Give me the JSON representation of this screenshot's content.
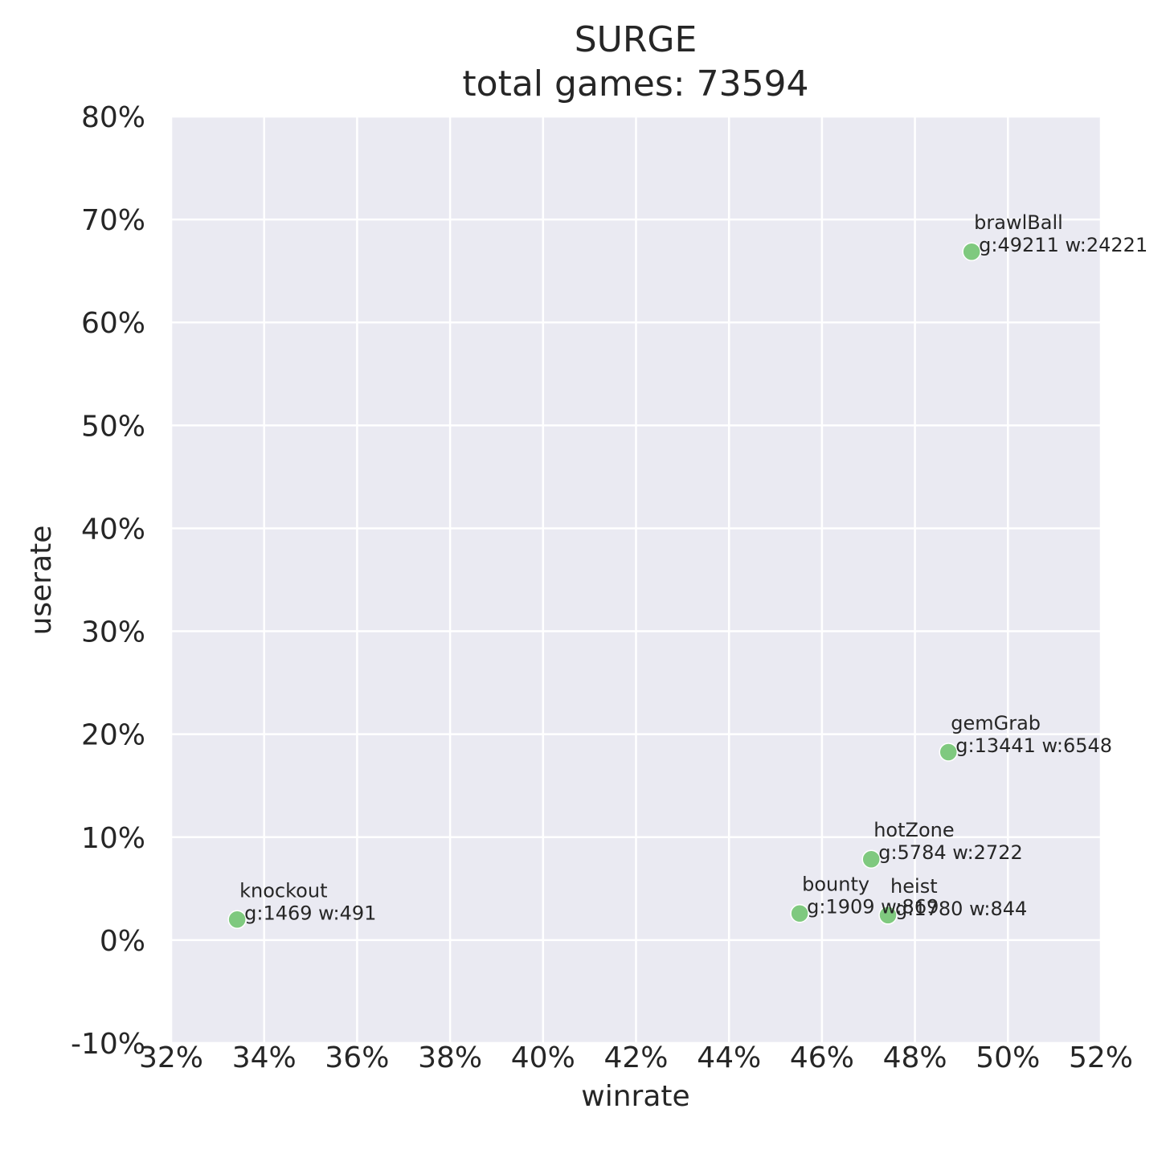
{
  "chart_data": {
    "type": "scatter",
    "title": "SURGE",
    "subtitle": "total games: 73594",
    "xlabel": "winrate",
    "ylabel": "userate",
    "xlim": [
      0.32,
      0.52
    ],
    "ylim": [
      -0.1,
      0.8
    ],
    "xticks": [
      0.32,
      0.34,
      0.36,
      0.38,
      0.4,
      0.42,
      0.44,
      0.46,
      0.48,
      0.5,
      0.52
    ],
    "xtick_labels": [
      "32%",
      "34%",
      "36%",
      "38%",
      "40%",
      "42%",
      "44%",
      "46%",
      "48%",
      "50%",
      "52%"
    ],
    "yticks": [
      -0.1,
      0.0,
      0.1,
      0.2,
      0.3,
      0.4,
      0.5,
      0.6,
      0.7,
      0.8
    ],
    "ytick_labels": [
      "-10%",
      "0%",
      "10%",
      "20%",
      "30%",
      "40%",
      "50%",
      "60%",
      "70%",
      "80%"
    ],
    "grid": true,
    "background": "#eaeaf2",
    "point_color": "#7fc97f",
    "points": [
      {
        "mode": "brawlBall",
        "stats": "g:49211 w:24221",
        "x": 0.4922,
        "y": 0.6687
      },
      {
        "mode": "gemGrab",
        "stats": "g:13441 w:6548",
        "x": 0.4872,
        "y": 0.1826
      },
      {
        "mode": "hotZone",
        "stats": "g:5784 w:2722",
        "x": 0.4706,
        "y": 0.0786
      },
      {
        "mode": "bounty",
        "stats": "g:1909 w:869",
        "x": 0.4552,
        "y": 0.0259
      },
      {
        "mode": "heist",
        "stats": "g:1780 w:844",
        "x": 0.4742,
        "y": 0.0242
      },
      {
        "mode": "knockout",
        "stats": "g:1469 w:491",
        "x": 0.3342,
        "y": 0.02
      }
    ]
  }
}
